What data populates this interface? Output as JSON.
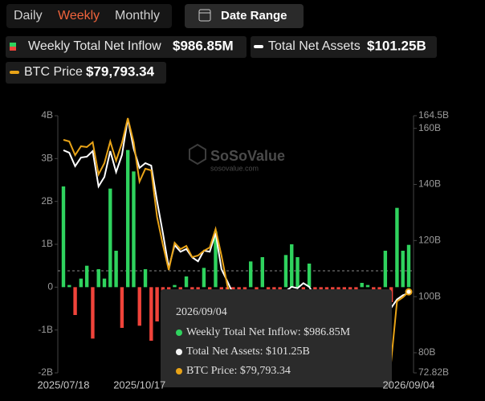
{
  "ui": {
    "tabs": [
      "Daily",
      "Weekly",
      "Monthly"
    ],
    "active_tab": 1,
    "date_range": "Date Range",
    "watermark": "SoSoValue",
    "watermark_sub": "sosovalue.com"
  },
  "chart_data": {
    "type": "bar-line",
    "categories": [
      "2025/07/18",
      null,
      null,
      null,
      null,
      null,
      null,
      null,
      null,
      null,
      null,
      null,
      null,
      "2025/10/17",
      null,
      null,
      null,
      null,
      null,
      null,
      null,
      null,
      null,
      null,
      null,
      null,
      null,
      null,
      null,
      null,
      null,
      null,
      null,
      null,
      null,
      null,
      null,
      null,
      null,
      null,
      null,
      null,
      null,
      null,
      null,
      null,
      null,
      null,
      null,
      null,
      null,
      null,
      null,
      null,
      null,
      null,
      null,
      null,
      null,
      "2026/09/04"
    ],
    "series": [
      {
        "name": "Weekly Total Net Inflow",
        "latest_label": "$986.85M",
        "color": "#2fd35e",
        "negative_color": "#f0433a",
        "values": [
          2.35,
          0.05,
          -0.65,
          0.2,
          0.5,
          -1.2,
          0.42,
          0.2,
          2.3,
          0.85,
          -0.95,
          3.2,
          2.7,
          -0.9,
          0.42,
          -1.25,
          -0.8,
          -0.6,
          -0.9,
          0.05,
          -0.5,
          0.25,
          -0.3,
          -0.4,
          0.45,
          -0.2,
          1.3,
          -0.3,
          -0.5,
          -0.7,
          -0.4,
          -0.2,
          0.6,
          -0.3,
          0.7,
          -0.5,
          -0.6,
          -0.3,
          0.75,
          1.0,
          0.7,
          -0.4,
          0.55,
          -0.5,
          -0.8,
          -0.6,
          -0.4,
          -0.9,
          -0.7,
          -0.5,
          -0.3,
          0.1,
          0.05,
          -0.2,
          -0.6,
          0.85,
          -0.35,
          1.85,
          0.85,
          0.98685
        ]
      },
      {
        "name": "Total Net Assets",
        "latest_label": "$101.25B",
        "color": "#ffffff",
        "axis": "y2",
        "values": [
          152.2,
          151.3,
          146.5,
          149.6,
          149.9,
          151.9,
          139.3,
          142.7,
          151.9,
          144.4,
          150.5,
          163.4,
          152.8,
          145.9,
          147.6,
          146.7,
          134,
          122.6,
          110.3,
          118.4,
          116,
          117,
          114,
          112.6,
          116.4,
          116,
          122.7,
          109.8,
          105.5,
          101,
          99,
          98.5,
          100,
          101,
          102,
          100.5,
          99.5,
          100,
          102,
          103.5,
          103,
          104.8,
          103.5,
          100,
          98,
          96,
          94,
          93,
          92,
          91,
          92,
          93,
          94,
          93,
          92,
          95,
          96,
          99,
          100.5,
          101.25
        ]
      },
      {
        "name": "BTC Price",
        "latest_label": "$79,793.34",
        "color": "#e8a317",
        "axis": "y3",
        "values": [
          118813,
          118400,
          114894,
          117163,
          116956,
          118194,
          109944,
          112831,
          118400,
          113450,
          117988,
          124381,
          118194,
          108088,
          111388,
          110975,
          99000,
          91800,
          85400,
          92400,
          90763,
          91590,
          88700,
          89113,
          90350,
          91175,
          95919,
          89113,
          81481,
          76000,
          72000,
          70000,
          73000,
          71000,
          74000,
          72000,
          69000,
          70000,
          73000,
          75000,
          74000,
          77000,
          75000,
          72000,
          70000,
          68000,
          67000,
          66000,
          65500,
          65000,
          66000,
          67000,
          68000,
          66000,
          64000,
          63000,
          62000,
          77356,
          78388,
          79793.34
        ]
      }
    ],
    "ylim": [
      -2,
      4
    ],
    "yticks": [
      {
        "value": 4,
        "label": "4B"
      },
      {
        "value": 3,
        "label": "3B"
      },
      {
        "value": 2,
        "label": "2B"
      },
      {
        "value": 1,
        "label": "1B"
      },
      0,
      {
        "value": -1,
        "label": "-1B"
      },
      {
        "value": -2,
        "label": "-2B"
      }
    ],
    "y2lim": [
      72.82,
      164.5
    ],
    "y2ticks": [
      {
        "value": 164.5,
        "label": "164.5B"
      },
      {
        "value": 160,
        "label": "160B"
      },
      {
        "value": 140,
        "label": "140B"
      },
      {
        "value": 120,
        "label": "120B"
      },
      {
        "value": 100,
        "label": "100B"
      },
      {
        "value": 80,
        "label": "80B"
      },
      {
        "value": 72.82,
        "label": "72.82B"
      }
    ],
    "y3lim": [
      59000,
      125000
    ],
    "tooltip": {
      "title": "2026/09/04",
      "items": [
        "Weekly Total Net Inflow: $986.85M",
        "Total Net Assets: $101.25B",
        "BTC Price: $79,793.34"
      ]
    }
  }
}
